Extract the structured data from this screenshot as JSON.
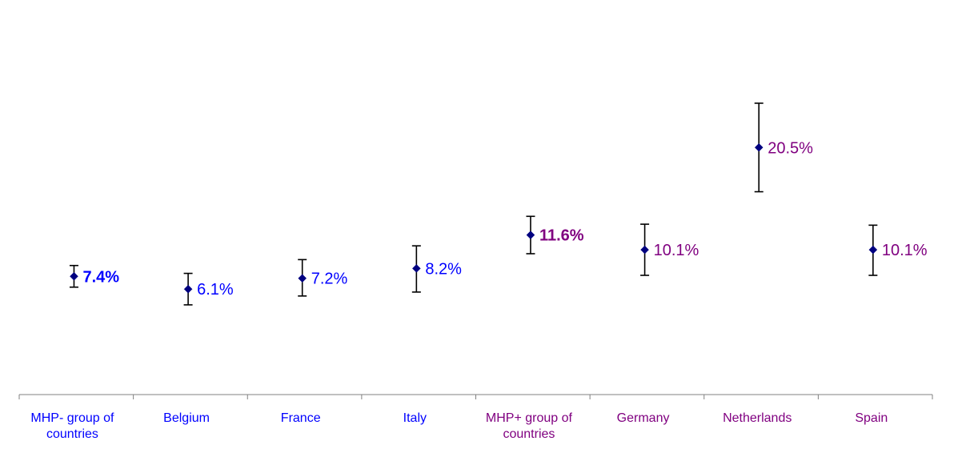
{
  "chart_data": {
    "type": "scatter",
    "title": "",
    "xlabel": "",
    "ylabel": "",
    "ylim": [
      0,
      24
    ],
    "grid": false,
    "legend": "none",
    "colors": {
      "group_minus": "#0000ff",
      "group_plus": "#800080",
      "marker": "#000080",
      "error_bar": "#000000",
      "axis": "#808080"
    },
    "categories": [
      {
        "label_lines": [
          "MHP- group of",
          "countries"
        ],
        "group": "minus"
      },
      {
        "label_lines": [
          "Belgium"
        ],
        "group": "minus"
      },
      {
        "label_lines": [
          "France"
        ],
        "group": "minus"
      },
      {
        "label_lines": [
          "Italy"
        ],
        "group": "minus"
      },
      {
        "label_lines": [
          "MHP+ group of",
          "countries"
        ],
        "group": "plus"
      },
      {
        "label_lines": [
          "Germany"
        ],
        "group": "plus"
      },
      {
        "label_lines": [
          "Netherlands"
        ],
        "group": "plus"
      },
      {
        "label_lines": [
          "Spain"
        ],
        "group": "plus"
      }
    ],
    "points": [
      {
        "value": 7.4,
        "low": 6.3,
        "high": 8.5,
        "label": "7.4%",
        "bold": true
      },
      {
        "value": 6.1,
        "low": 4.5,
        "high": 7.7,
        "label": "6.1%",
        "bold": false
      },
      {
        "value": 7.2,
        "low": 5.4,
        "high": 9.1,
        "label": "7.2%",
        "bold": false
      },
      {
        "value": 8.2,
        "low": 5.8,
        "high": 10.5,
        "label": "8.2%",
        "bold": false
      },
      {
        "value": 11.6,
        "low": 9.7,
        "high": 13.5,
        "label": "11.6%",
        "bold": true
      },
      {
        "value": 10.1,
        "low": 7.5,
        "high": 12.7,
        "label": "10.1%",
        "bold": false
      },
      {
        "value": 20.5,
        "low": 16.0,
        "high": 25.0,
        "label": "20.5%",
        "bold": false
      },
      {
        "value": 10.1,
        "low": 7.5,
        "high": 12.6,
        "label": "10.1%",
        "bold": false
      }
    ]
  }
}
